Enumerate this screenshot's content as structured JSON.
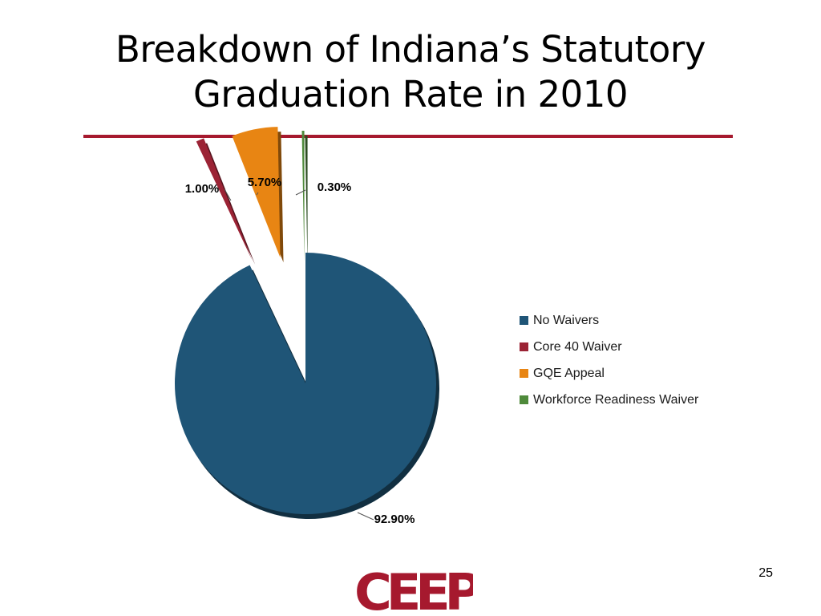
{
  "slide": {
    "title_line1": "Breakdown of Indiana’s Statutory",
    "title_line2": "Graduation Rate in 2010",
    "page_number": "25",
    "logo_text": "CEEP",
    "colors": {
      "accent_rule": "#a6192e",
      "logo": "#a6192e"
    }
  },
  "chart_data": {
    "type": "pie",
    "title": "",
    "slices": [
      {
        "name": "No Waivers",
        "value": 92.9,
        "label": "92.90%",
        "color": "#1f5577"
      },
      {
        "name": "Core 40 Waiver",
        "value": 1.0,
        "label": "1.00%",
        "color": "#9b2335"
      },
      {
        "name": "GQE Appeal",
        "value": 5.7,
        "label": "5.70%",
        "color": "#e88513"
      },
      {
        "name": "Workforce Readiness Waiver",
        "value": 0.3,
        "label": "0.30%",
        "color": "#4f8a3b"
      }
    ],
    "legend_position": "right",
    "exploded": [
      "Core 40 Waiver",
      "GQE Appeal",
      "Workforce Readiness Waiver"
    ]
  }
}
